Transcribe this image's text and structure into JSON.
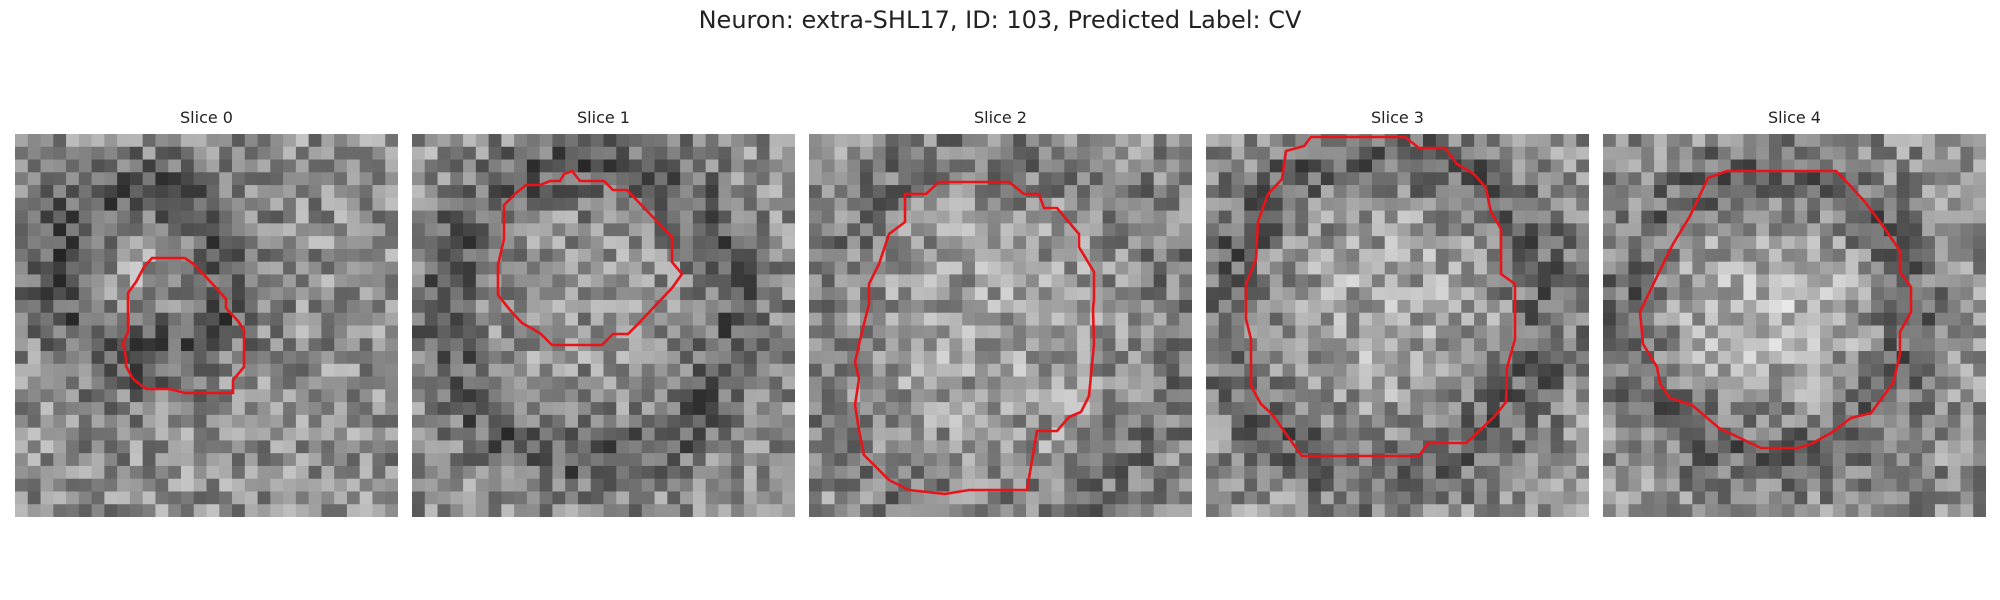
{
  "figure": {
    "title": "Neuron: extra-SHL17, ID: 103, Predicted Label: CV"
  },
  "panels": [
    {
      "title": "Slice 0"
    },
    {
      "title": "Slice 1"
    },
    {
      "title": "Slice 2"
    },
    {
      "title": "Slice 3"
    },
    {
      "title": "Slice 4"
    }
  ],
  "colors": {
    "contour": "#e8141a",
    "background": "#ffffff"
  }
}
